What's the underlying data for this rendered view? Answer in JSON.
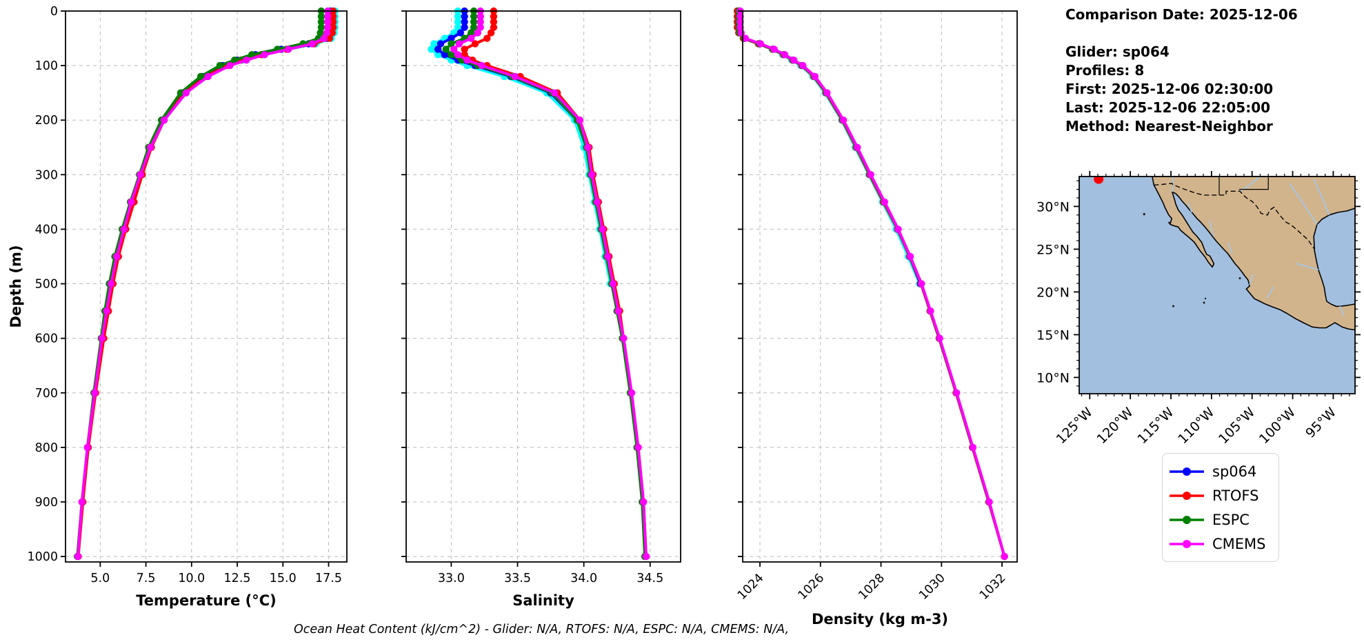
{
  "info_panel": {
    "lines": [
      "Comparison Date: 2025-12-06",
      "",
      "Glider: sp064",
      "Profiles: 8",
      "First: 2025-12-06 02:30:00",
      "Last: 2025-12-06 22:05:00",
      "Method: Nearest-Neighbor"
    ]
  },
  "footer_note": "Ocean Heat Content (kJ/cm^2) - Glider: N/A,  RTOFS: N/A,  ESPC: N/A,  CMEMS: N/A,",
  "legend": {
    "entries": [
      {
        "label": "sp064",
        "color": "#0000ff"
      },
      {
        "label": "RTOFS",
        "color": "#ff0000"
      },
      {
        "label": "ESPC",
        "color": "#008000"
      },
      {
        "label": "CMEMS",
        "color": "#ff00ff"
      }
    ]
  },
  "map": {
    "lat_tick_labels": [
      "30°N",
      "25°N",
      "20°N",
      "15°N",
      "10°N"
    ],
    "lat_tick_values": [
      30,
      25,
      20,
      15,
      10
    ],
    "lon_tick_labels": [
      "125°W",
      "120°W",
      "115°W",
      "110°W",
      "105°W",
      "100°W",
      "95°W"
    ],
    "lon_tick_values": [
      125,
      120,
      115,
      110,
      105,
      100,
      95
    ],
    "extent": {
      "west_lon": 126.3,
      "east_lon": 92.3,
      "north_lat": 33.5,
      "south_lat": 8.1
    },
    "glider_marker": {
      "lon_w": 123.9,
      "lat_n": 33.2,
      "color": "#ff0000"
    },
    "colors": {
      "land": "#d2b48c",
      "ocean": "#a3bfdf",
      "river": "#a0c8f0"
    }
  },
  "chart_data": [
    {
      "id": "temperature",
      "type": "line",
      "orientation": "depth-profile",
      "xlabel": "Temperature (°C)",
      "ylabel": "Depth (m)",
      "xlim": [
        3.1,
        18.5
      ],
      "ylim": [
        0,
        1010
      ],
      "xticks": [
        5.0,
        7.5,
        10.0,
        12.5,
        15.0,
        17.5
      ],
      "xtick_labels": [
        "5.0",
        "7.5",
        "10.0",
        "12.5",
        "15.0",
        "17.5"
      ],
      "yticks": [
        0,
        100,
        200,
        300,
        400,
        500,
        600,
        700,
        800,
        900,
        1000
      ],
      "rotate_xtick_labels": false,
      "show_ytick_labels": true,
      "grid": true,
      "depths": [
        0,
        10,
        20,
        30,
        40,
        50,
        60,
        70,
        80,
        90,
        100,
        120,
        150,
        200,
        250,
        300,
        350,
        400,
        450,
        500,
        550,
        600,
        700,
        800,
        900,
        1000
      ],
      "series": [
        {
          "name": "sp064-raw",
          "color": "#00ffff",
          "in_legend": false,
          "values": [
            17.85,
            17.85,
            17.85,
            17.85,
            17.8,
            17.65,
            16.8,
            15.3,
            13.9,
            12.8,
            12.0,
            10.9,
            9.7,
            8.5,
            7.8,
            7.3,
            6.8,
            6.35,
            5.95,
            5.6,
            null,
            null,
            null,
            null,
            null,
            null
          ]
        },
        {
          "name": "sp064",
          "color": "#0000ff",
          "in_legend": true,
          "values": [
            17.6,
            17.6,
            17.6,
            17.6,
            17.55,
            17.4,
            16.4,
            14.9,
            13.5,
            12.5,
            11.7,
            10.6,
            9.5,
            8.4,
            7.7,
            7.2,
            6.7,
            6.25,
            5.85,
            5.5,
            null,
            null,
            null,
            null,
            null,
            null
          ]
        },
        {
          "name": "RTOFS",
          "color": "#ff0000",
          "in_legend": true,
          "values": [
            17.75,
            17.75,
            17.75,
            17.75,
            17.7,
            17.55,
            16.7,
            15.2,
            13.8,
            12.7,
            11.9,
            10.8,
            9.6,
            8.5,
            7.8,
            7.3,
            6.85,
            6.4,
            6.0,
            5.7,
            5.45,
            5.2,
            4.75,
            4.35,
            4.05,
            3.8
          ]
        },
        {
          "name": "ESPC",
          "color": "#008000",
          "in_legend": true,
          "values": [
            17.1,
            17.1,
            17.1,
            17.1,
            17.05,
            16.95,
            16.1,
            14.7,
            13.3,
            12.35,
            11.55,
            10.5,
            9.4,
            8.35,
            7.65,
            7.15,
            6.65,
            6.2,
            5.8,
            5.5,
            5.25,
            5.05,
            4.65,
            4.3,
            4.0,
            3.75
          ]
        },
        {
          "name": "CMEMS",
          "color": "#ff00ff",
          "in_legend": true,
          "values": [
            17.45,
            17.45,
            17.45,
            17.45,
            17.4,
            17.25,
            16.6,
            15.3,
            14.0,
            13.0,
            12.1,
            10.9,
            9.7,
            8.5,
            7.75,
            7.2,
            6.7,
            6.3,
            5.9,
            5.6,
            5.35,
            5.1,
            4.7,
            4.3,
            4.0,
            3.78
          ]
        }
      ]
    },
    {
      "id": "salinity",
      "type": "line",
      "orientation": "depth-profile",
      "xlabel": "Salinity",
      "ylabel": "",
      "xlim": [
        32.66,
        34.73
      ],
      "ylim": [
        0,
        1010
      ],
      "xticks": [
        33.0,
        33.5,
        34.0,
        34.5
      ],
      "xtick_labels": [
        "33.0",
        "33.5",
        "34.0",
        "34.5"
      ],
      "yticks": [
        0,
        100,
        200,
        300,
        400,
        500,
        600,
        700,
        800,
        900,
        1000
      ],
      "rotate_xtick_labels": false,
      "show_ytick_labels": false,
      "grid": true,
      "depths": [
        0,
        10,
        20,
        30,
        40,
        50,
        60,
        70,
        80,
        90,
        100,
        120,
        150,
        200,
        250,
        300,
        350,
        400,
        450,
        500,
        550,
        600,
        700,
        800,
        900,
        1000
      ],
      "series": [
        {
          "name": "sp064-raw",
          "color": "#00ffff",
          "in_legend": false,
          "values": [
            33.05,
            33.05,
            33.05,
            33.05,
            33.02,
            32.95,
            32.87,
            32.85,
            32.9,
            33.0,
            33.12,
            33.4,
            33.72,
            33.93,
            34.0,
            34.04,
            34.08,
            34.12,
            34.16,
            34.2,
            null,
            null,
            null,
            null,
            null,
            null
          ]
        },
        {
          "name": "sp064",
          "color": "#0000ff",
          "in_legend": true,
          "values": [
            33.1,
            33.1,
            33.1,
            33.1,
            33.07,
            33.0,
            32.92,
            32.9,
            32.95,
            33.05,
            33.18,
            33.45,
            33.75,
            33.95,
            34.02,
            34.06,
            34.1,
            34.14,
            34.18,
            34.22,
            null,
            null,
            null,
            null,
            null,
            null
          ]
        },
        {
          "name": "RTOFS",
          "color": "#ff0000",
          "in_legend": true,
          "values": [
            33.32,
            33.32,
            33.32,
            33.32,
            33.3,
            33.27,
            33.18,
            33.1,
            33.1,
            33.16,
            33.27,
            33.52,
            33.8,
            33.97,
            34.04,
            34.07,
            34.11,
            34.15,
            34.19,
            34.23,
            34.27,
            34.3,
            34.36,
            34.41,
            34.45,
            34.47
          ]
        },
        {
          "name": "ESPC",
          "color": "#008000",
          "in_legend": true,
          "values": [
            33.17,
            33.17,
            33.17,
            33.17,
            33.15,
            33.1,
            33.0,
            32.96,
            33.0,
            33.08,
            33.2,
            33.46,
            33.76,
            33.95,
            34.02,
            34.05,
            34.09,
            34.13,
            34.17,
            34.21,
            34.25,
            34.29,
            34.35,
            34.4,
            34.44,
            34.46
          ]
        },
        {
          "name": "CMEMS",
          "color": "#ff00ff",
          "in_legend": true,
          "values": [
            33.22,
            33.22,
            33.22,
            33.22,
            33.2,
            33.15,
            33.06,
            33.02,
            33.05,
            33.12,
            33.23,
            33.48,
            33.78,
            33.97,
            34.03,
            34.06,
            34.1,
            34.14,
            34.18,
            34.22,
            34.26,
            34.3,
            34.36,
            34.41,
            34.45,
            34.47
          ]
        }
      ]
    },
    {
      "id": "density",
      "type": "line",
      "orientation": "depth-profile",
      "xlabel": "Density (kg m-3)",
      "ylabel": "",
      "xlim": [
        1023.43,
        1032.5
      ],
      "ylim": [
        0,
        1010
      ],
      "xticks": [
        1024,
        1026,
        1028,
        1030,
        1032
      ],
      "xtick_labels": [
        "1024",
        "1026",
        "1028",
        "1030",
        "1032"
      ],
      "yticks": [
        0,
        100,
        200,
        300,
        400,
        500,
        600,
        700,
        800,
        900,
        1000
      ],
      "rotate_xtick_labels": true,
      "show_ytick_labels": false,
      "grid": true,
      "depths": [
        0,
        10,
        20,
        30,
        40,
        50,
        60,
        70,
        80,
        90,
        100,
        120,
        150,
        200,
        250,
        300,
        350,
        400,
        450,
        500,
        550,
        600,
        700,
        800,
        900,
        1000
      ],
      "series": [
        {
          "name": "sp064-raw",
          "color": "#00ffff",
          "in_legend": false,
          "values": [
            1023.28,
            1023.28,
            1023.28,
            1023.28,
            1023.3,
            1023.45,
            1023.95,
            1024.4,
            1024.75,
            1025.05,
            1025.35,
            1025.75,
            1026.15,
            1026.7,
            1027.15,
            1027.6,
            1028.05,
            1028.5,
            1028.9,
            1029.28,
            null,
            null,
            null,
            null,
            null,
            null
          ]
        },
        {
          "name": "sp064",
          "color": "#0000ff",
          "in_legend": true,
          "values": [
            1023.32,
            1023.32,
            1023.32,
            1023.32,
            1023.35,
            1023.5,
            1024.0,
            1024.45,
            1024.8,
            1025.1,
            1025.4,
            1025.8,
            1026.2,
            1026.75,
            1027.2,
            1027.65,
            1028.1,
            1028.55,
            1028.95,
            1029.3,
            null,
            null,
            null,
            null,
            null,
            null
          ]
        },
        {
          "name": "RTOFS",
          "color": "#ff0000",
          "in_legend": true,
          "values": [
            1023.25,
            1023.25,
            1023.25,
            1023.25,
            1023.3,
            1023.45,
            1023.95,
            1024.42,
            1024.78,
            1025.08,
            1025.38,
            1025.78,
            1026.18,
            1026.72,
            1027.18,
            1027.62,
            1028.08,
            1028.55,
            1028.95,
            1029.32,
            1029.62,
            1029.92,
            1030.48,
            1031.02,
            1031.56,
            1032.08
          ]
        },
        {
          "name": "ESPC",
          "color": "#008000",
          "in_legend": true,
          "values": [
            1023.3,
            1023.3,
            1023.3,
            1023.3,
            1023.33,
            1023.48,
            1023.98,
            1024.44,
            1024.8,
            1025.1,
            1025.4,
            1025.8,
            1026.2,
            1026.74,
            1027.2,
            1027.64,
            1028.1,
            1028.56,
            1028.96,
            1029.33,
            1029.63,
            1029.93,
            1030.49,
            1031.03,
            1031.57,
            1032.08
          ]
        },
        {
          "name": "CMEMS",
          "color": "#ff00ff",
          "in_legend": true,
          "values": [
            1023.35,
            1023.35,
            1023.35,
            1023.35,
            1023.38,
            1023.52,
            1024.02,
            1024.47,
            1024.82,
            1025.12,
            1025.42,
            1025.82,
            1026.22,
            1026.76,
            1027.22,
            1027.66,
            1028.12,
            1028.57,
            1028.97,
            1029.34,
            1029.64,
            1029.94,
            1030.5,
            1031.04,
            1031.58,
            1032.08
          ]
        }
      ]
    }
  ]
}
